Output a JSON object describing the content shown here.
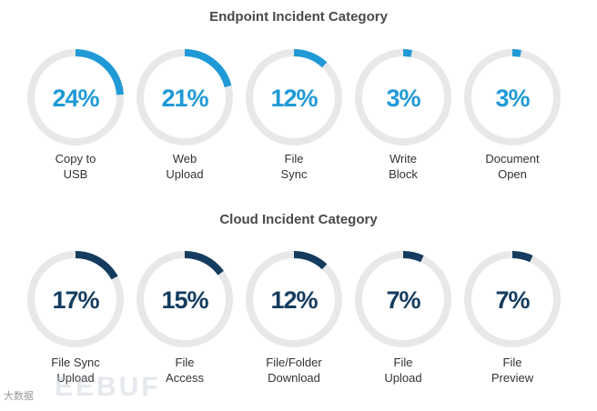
{
  "chart_data": [
    {
      "type": "donut",
      "title": "Endpoint Incident Category",
      "unit": "%",
      "color": "#1f9ad6",
      "track_color": "#e8e8e8",
      "items": [
        {
          "value": 24,
          "label": "24%",
          "line1": "Copy to",
          "line2": "USB"
        },
        {
          "value": 21,
          "label": "21%",
          "line1": "Web",
          "line2": "Upload"
        },
        {
          "value": 12,
          "label": "12%",
          "line1": "File",
          "line2": "Sync"
        },
        {
          "value": 3,
          "label": "3%",
          "line1": "Write",
          "line2": "Block"
        },
        {
          "value": 3,
          "label": "3%",
          "line1": "Document",
          "line2": "Open"
        }
      ]
    },
    {
      "type": "donut",
      "title": "Cloud Incident Category",
      "unit": "%",
      "color": "#143c5e",
      "track_color": "#e8e8e8",
      "items": [
        {
          "value": 17,
          "label": "17%",
          "line1": "File Sync",
          "line2": "Upload"
        },
        {
          "value": 15,
          "label": "15%",
          "line1": "File",
          "line2": "Access"
        },
        {
          "value": 12,
          "label": "12%",
          "line1": "File/Folder",
          "line2": "Download"
        },
        {
          "value": 7,
          "label": "7%",
          "line1": "File",
          "line2": "Upload"
        },
        {
          "value": 7,
          "label": "7%",
          "line1": "File",
          "line2": "Preview"
        }
      ]
    }
  ],
  "watermark": {
    "small": "大数据",
    "large": "EEBUF"
  }
}
